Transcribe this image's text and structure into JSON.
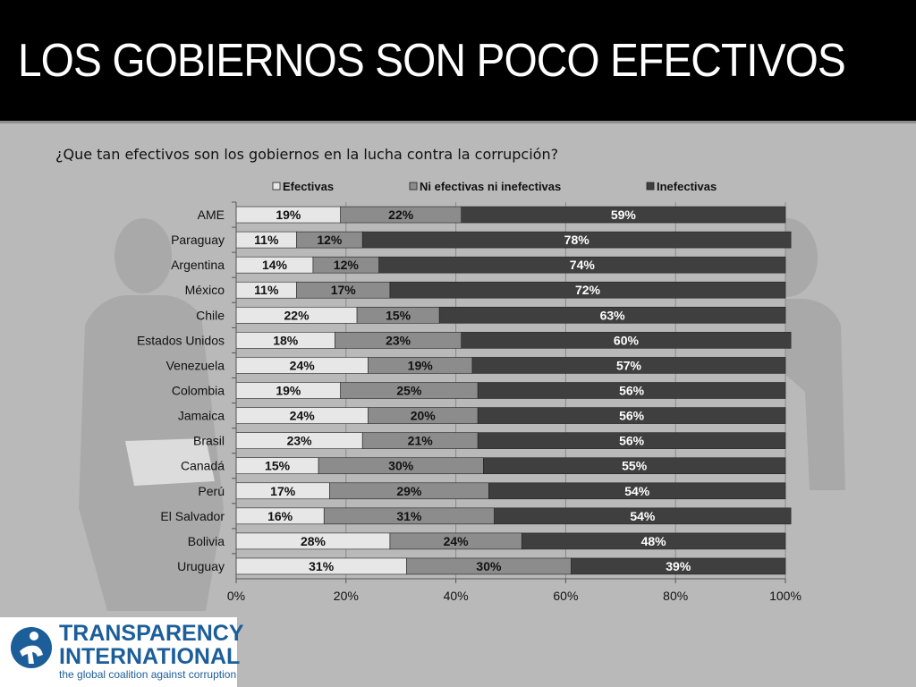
{
  "slide": {
    "title": "LOS GOBIERNOS SON POCO EFECTIVOS",
    "subtitle": "¿Que tan efectivos son los gobiernos en la lucha contra la corrupción?"
  },
  "logo": {
    "line1": "TRANSPARENCY",
    "line2": "INTERNATIONAL",
    "tagline": "the global coalition against corruption"
  },
  "colors": {
    "header_bg": "#000000",
    "slide_bg": "#b9b9b9",
    "efectivas": "#e7e7e7",
    "ni": "#8c8c8c",
    "inefectivas": "#3f3f3f",
    "brand": "#1b5e9a"
  },
  "chart_data": {
    "type": "bar",
    "orientation": "horizontal",
    "stacked": true,
    "categories": [
      "AME",
      "Paraguay",
      "Argentina",
      "México",
      "Chile",
      "Estados Unidos",
      "Venezuela",
      "Colombia",
      "Jamaica",
      "Brasil",
      "Canadá",
      "Perú",
      "El Salvador",
      "Bolivia",
      "Uruguay"
    ],
    "series": [
      {
        "name": "Efectivas",
        "color": "#e7e7e7",
        "label_color": "#111111",
        "values": [
          19,
          11,
          14,
          11,
          22,
          18,
          24,
          19,
          24,
          23,
          15,
          17,
          16,
          28,
          31
        ]
      },
      {
        "name": "Ni efectivas ni inefectivas",
        "color": "#8c8c8c",
        "label_color": "#111111",
        "values": [
          22,
          12,
          12,
          17,
          15,
          23,
          19,
          25,
          20,
          21,
          30,
          29,
          31,
          24,
          30
        ]
      },
      {
        "name": "Inefectivas",
        "color": "#3f3f3f",
        "label_color": "#ffffff",
        "values": [
          59,
          78,
          74,
          72,
          63,
          60,
          57,
          56,
          56,
          56,
          55,
          54,
          54,
          48,
          39
        ]
      }
    ],
    "xlim": [
      0,
      100
    ],
    "xticks": [
      "0%",
      "20%",
      "40%",
      "60%",
      "80%",
      "100%"
    ],
    "value_suffix": "%",
    "legend": "top",
    "grid": true
  }
}
